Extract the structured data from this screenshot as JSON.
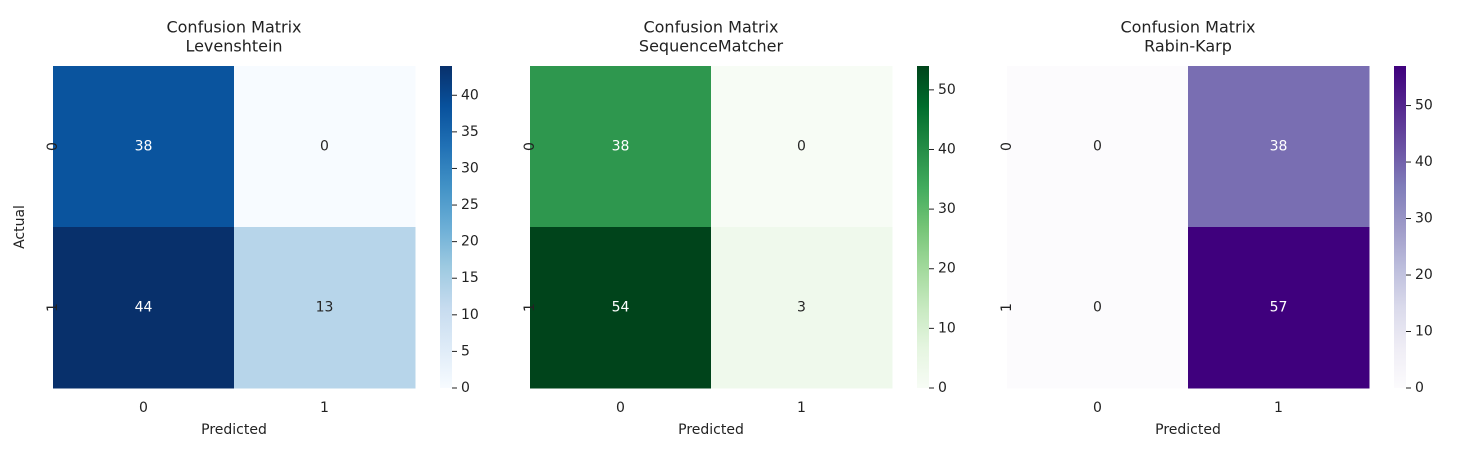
{
  "chart_data": [
    {
      "type": "heatmap",
      "title": "Confusion Matrix",
      "subtitle": "Levenshtein",
      "x_categories": [
        "0",
        "1"
      ],
      "y_categories": [
        "0",
        "1"
      ],
      "values": [
        [
          38,
          0
        ],
        [
          44,
          13
        ]
      ],
      "xlabel": "Predicted",
      "ylabel": "Actual",
      "clim": [
        0,
        44
      ],
      "cticks": [
        0,
        5,
        10,
        15,
        20,
        25,
        30,
        35,
        40
      ],
      "colors": [
        "#f7fbff",
        "#deebf7",
        "#c6dbef",
        "#9ecae1",
        "#6baed6",
        "#4292c6",
        "#2171b5",
        "#08519c",
        "#08306b"
      ]
    },
    {
      "type": "heatmap",
      "title": "Confusion Matrix",
      "subtitle": "SequenceMatcher",
      "x_categories": [
        "0",
        "1"
      ],
      "y_categories": [
        "0",
        "1"
      ],
      "values": [
        [
          38,
          0
        ],
        [
          54,
          3
        ]
      ],
      "xlabel": "Predicted",
      "clim": [
        0,
        54
      ],
      "cticks": [
        0,
        10,
        20,
        30,
        40,
        50
      ],
      "colors": [
        "#f7fcf5",
        "#e5f5e0",
        "#c7e9c0",
        "#a1d99b",
        "#74c476",
        "#41ab5d",
        "#238b45",
        "#006d2c",
        "#00441b"
      ]
    },
    {
      "type": "heatmap",
      "title": "Confusion Matrix",
      "subtitle": "Rabin-Karp",
      "x_categories": [
        "0",
        "1"
      ],
      "y_categories": [
        "0",
        "1"
      ],
      "values": [
        [
          0,
          38
        ],
        [
          0,
          57
        ]
      ],
      "xlabel": "Predicted",
      "clim": [
        0,
        57
      ],
      "cticks": [
        0,
        10,
        20,
        30,
        40,
        50
      ],
      "colors": [
        "#fcfbfd",
        "#efedf5",
        "#dadaeb",
        "#bcbddc",
        "#9e9ac8",
        "#807dba",
        "#6a51a3",
        "#54278f",
        "#3f007d"
      ]
    }
  ]
}
